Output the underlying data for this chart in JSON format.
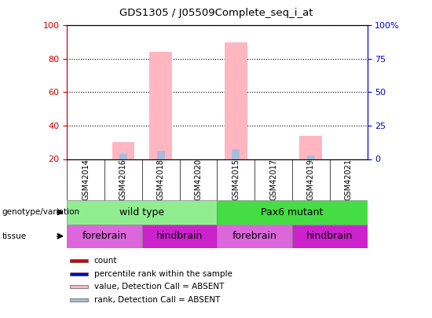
{
  "title": "GDS1305 / J05509Complete_seq_i_at",
  "samples": [
    "GSM42014",
    "GSM42016",
    "GSM42018",
    "GSM42020",
    "GSM42015",
    "GSM42017",
    "GSM42019",
    "GSM42021"
  ],
  "absent_value_bars": [
    0,
    30,
    84,
    0,
    90,
    0,
    34,
    0
  ],
  "absent_rank_bars": [
    0,
    23,
    25,
    0,
    26,
    0,
    22,
    0
  ],
  "ylim_left": [
    20,
    100
  ],
  "ylim_right": [
    0,
    100
  ],
  "yticks_left": [
    20,
    40,
    60,
    80,
    100
  ],
  "yticks_right": [
    0,
    25,
    50,
    75,
    100
  ],
  "ytick_labels_right": [
    "0",
    "25",
    "50",
    "75",
    "100%"
  ],
  "genotype_groups": [
    {
      "label": "wild type",
      "start": 0,
      "end": 4,
      "color": "#90EE90"
    },
    {
      "label": "Pax6 mutant",
      "start": 4,
      "end": 8,
      "color": "#44DD44"
    }
  ],
  "tissue_groups": [
    {
      "label": "forebrain",
      "start": 0,
      "end": 2,
      "color": "#DD66DD"
    },
    {
      "label": "hindbrain",
      "start": 2,
      "end": 4,
      "color": "#CC22CC"
    },
    {
      "label": "forebrain",
      "start": 4,
      "end": 6,
      "color": "#DD66DD"
    },
    {
      "label": "hindbrain",
      "start": 6,
      "end": 8,
      "color": "#CC22CC"
    }
  ],
  "legend_items": [
    {
      "label": "count",
      "color": "#CC0000"
    },
    {
      "label": "percentile rank within the sample",
      "color": "#0000CC"
    },
    {
      "label": "value, Detection Call = ABSENT",
      "color": "#FFB6C1"
    },
    {
      "label": "rank, Detection Call = ABSENT",
      "color": "#AABBDD"
    }
  ],
  "absent_value_color": "#FFB6C1",
  "absent_rank_color": "#AABBDD",
  "left_axis_color": "#CC0000",
  "right_axis_color": "#0000CC",
  "plot_bg_color": "#D8D8D8",
  "xticklabel_bg": "#D8D8D8"
}
